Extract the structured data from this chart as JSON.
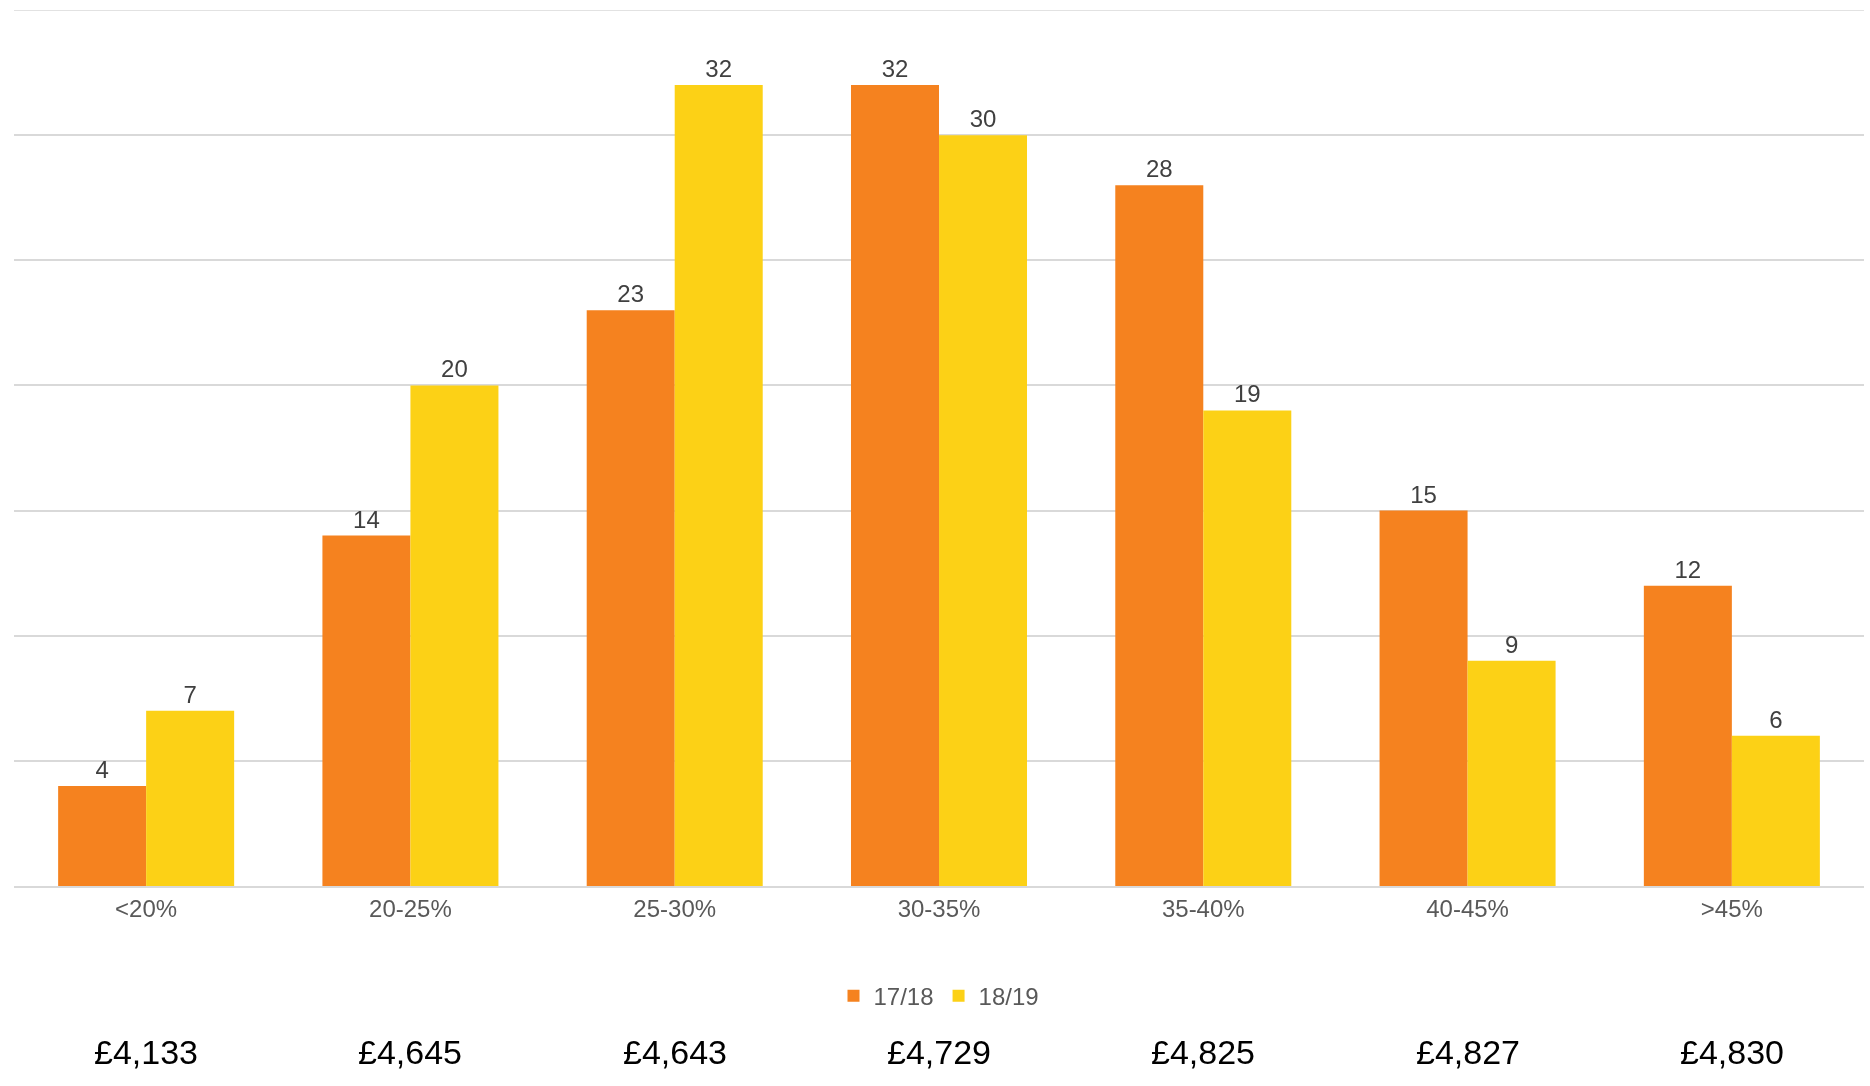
{
  "chart_data": {
    "type": "bar",
    "categories": [
      "<20%",
      "20-25%",
      "25-30%",
      "30-35%",
      "35-40%",
      "40-45%",
      ">45%"
    ],
    "series": [
      {
        "name": "17/18",
        "color": "#f5821f",
        "values": [
          4,
          14,
          23,
          32,
          28,
          15,
          12
        ]
      },
      {
        "name": "18/19",
        "color": "#fcd116",
        "values": [
          7,
          20,
          32,
          30,
          19,
          9,
          6
        ]
      }
    ],
    "ylim": [
      0,
      35
    ],
    "yticks": [
      {
        "value": 0,
        "label": null
      },
      {
        "value": 5,
        "label": null
      },
      {
        "value": 10,
        "label": null
      },
      {
        "value": 15,
        "label": null
      },
      {
        "value": 20,
        "label": null
      },
      {
        "value": 25,
        "label": null
      },
      {
        "value": 30,
        "label": null
      },
      {
        "value": 35,
        "label": null
      }
    ],
    "grid": "y",
    "tick_labels": "x",
    "legend": "bottom",
    "data_labels": true,
    "annotations": [
      "£4,133",
      "£4,645",
      "£4,643",
      "£4,729",
      "£4,825",
      "£4,827",
      "£4,830"
    ]
  }
}
